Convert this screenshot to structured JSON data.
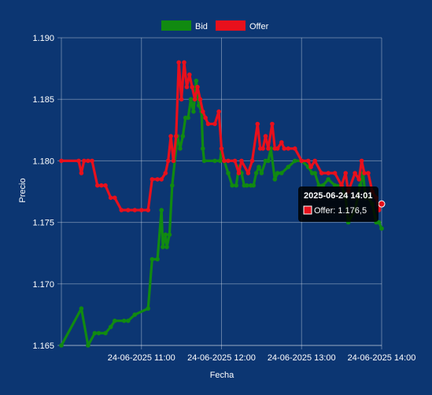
{
  "chart_data": {
    "type": "line",
    "xlabel": "Fecha",
    "ylabel": "Precio",
    "ylim": [
      1.165,
      1.19
    ],
    "yticks": [
      "1.165",
      "1.170",
      "1.175",
      "1.180",
      "1.185",
      "1.190"
    ],
    "xlim": [
      "2025-06-24 10:00",
      "2025-06-24 14:00"
    ],
    "xticks": [
      {
        "t": "2025-06-24 11:00",
        "label": "24-06-2025 11:00"
      },
      {
        "t": "2025-06-24 12:00",
        "label": "24-06-2025 12:00"
      },
      {
        "t": "2025-06-24 13:00",
        "label": "24-06-2025 13:00"
      },
      {
        "t": "2025-06-24 14:00",
        "label": "24-06-2025 14:00"
      }
    ],
    "grid": true,
    "legend_position": "top-center",
    "series": [
      {
        "name": "Bid",
        "color": "#118a11",
        "points": [
          [
            "10:00",
            1.165
          ],
          [
            "10:15",
            1.168
          ],
          [
            "10:20",
            1.165
          ],
          [
            "10:25",
            1.166
          ],
          [
            "10:28",
            1.166
          ],
          [
            "10:33",
            1.166
          ],
          [
            "10:37",
            1.1665
          ],
          [
            "10:40",
            1.167
          ],
          [
            "10:47",
            1.167
          ],
          [
            "10:50",
            1.167
          ],
          [
            "10:55",
            1.1675
          ],
          [
            "11:05",
            1.168
          ],
          [
            "11:08",
            1.172
          ],
          [
            "11:12",
            1.172
          ],
          [
            "11:15",
            1.176
          ],
          [
            "11:16",
            1.173
          ],
          [
            "11:18",
            1.174
          ],
          [
            "11:19",
            1.173
          ],
          [
            "11:21",
            1.174
          ],
          [
            "11:23",
            1.178
          ],
          [
            "11:27",
            1.182
          ],
          [
            "11:29",
            1.181
          ],
          [
            "11:31",
            1.182
          ],
          [
            "11:33",
            1.1835
          ],
          [
            "11:35",
            1.1835
          ],
          [
            "11:37",
            1.185
          ],
          [
            "11:39",
            1.184
          ],
          [
            "11:41",
            1.1865
          ],
          [
            "11:43",
            1.1845
          ],
          [
            "11:45",
            1.184
          ],
          [
            "11:46",
            1.181
          ],
          [
            "11:47",
            1.18
          ],
          [
            "11:55",
            1.18
          ],
          [
            "11:59",
            1.18
          ],
          [
            "12:00",
            1.181
          ],
          [
            "12:02",
            1.18
          ],
          [
            "12:05",
            1.179
          ],
          [
            "12:08",
            1.178
          ],
          [
            "12:11",
            1.178
          ],
          [
            "12:13",
            1.1795
          ],
          [
            "12:15",
            1.179
          ],
          [
            "12:17",
            1.178
          ],
          [
            "12:19",
            1.178
          ],
          [
            "12:22",
            1.178
          ],
          [
            "12:24",
            1.178
          ],
          [
            "12:26",
            1.179
          ],
          [
            "12:28",
            1.1795
          ],
          [
            "12:30",
            1.179
          ],
          [
            "12:33",
            1.18
          ],
          [
            "12:35",
            1.18
          ],
          [
            "12:37",
            1.181
          ],
          [
            "12:40",
            1.1785
          ],
          [
            "12:42",
            1.179
          ],
          [
            "12:45",
            1.179
          ],
          [
            "12:50",
            1.1795
          ],
          [
            "12:55",
            1.18
          ],
          [
            "13:00",
            1.18
          ],
          [
            "13:05",
            1.1795
          ],
          [
            "13:08",
            1.179
          ],
          [
            "13:10",
            1.179
          ],
          [
            "13:13",
            1.178
          ],
          [
            "13:16",
            1.178
          ],
          [
            "13:20",
            1.1785
          ],
          [
            "13:25",
            1.178
          ],
          [
            "13:30",
            1.178
          ],
          [
            "13:33",
            1.177
          ],
          [
            "13:35",
            1.175
          ],
          [
            "13:40",
            1.176
          ],
          [
            "13:44",
            1.178
          ],
          [
            "13:46",
            1.179
          ],
          [
            "13:48",
            1.177
          ],
          [
            "13:50",
            1.177
          ],
          [
            "13:53",
            1.1765
          ],
          [
            "13:56",
            1.175
          ],
          [
            "13:58",
            1.175
          ],
          [
            "14:00",
            1.1745
          ]
        ]
      },
      {
        "name": "Offer",
        "color": "#e8101c",
        "points": [
          [
            "10:00",
            1.18
          ],
          [
            "10:13",
            1.18
          ],
          [
            "10:15",
            1.179
          ],
          [
            "10:17",
            1.18
          ],
          [
            "10:20",
            1.18
          ],
          [
            "10:23",
            1.18
          ],
          [
            "10:27",
            1.178
          ],
          [
            "10:30",
            1.178
          ],
          [
            "10:33",
            1.178
          ],
          [
            "10:37",
            1.177
          ],
          [
            "10:40",
            1.177
          ],
          [
            "10:45",
            1.176
          ],
          [
            "10:50",
            1.176
          ],
          [
            "10:55",
            1.176
          ],
          [
            "11:00",
            1.176
          ],
          [
            "11:05",
            1.176
          ],
          [
            "11:08",
            1.1785
          ],
          [
            "11:12",
            1.1785
          ],
          [
            "11:15",
            1.1785
          ],
          [
            "11:18",
            1.179
          ],
          [
            "11:20",
            1.18
          ],
          [
            "11:22",
            1.182
          ],
          [
            "11:24",
            1.18
          ],
          [
            "11:26",
            1.182
          ],
          [
            "11:28",
            1.188
          ],
          [
            "11:30",
            1.185
          ],
          [
            "11:32",
            1.188
          ],
          [
            "11:34",
            1.186
          ],
          [
            "11:36",
            1.187
          ],
          [
            "11:38",
            1.186
          ],
          [
            "11:40",
            1.185
          ],
          [
            "11:42",
            1.186
          ],
          [
            "11:44",
            1.185
          ],
          [
            "11:46",
            1.184
          ],
          [
            "11:48",
            1.1835
          ],
          [
            "11:50",
            1.183
          ],
          [
            "11:55",
            1.183
          ],
          [
            "11:58",
            1.184
          ],
          [
            "12:00",
            1.181
          ],
          [
            "12:02",
            1.18
          ],
          [
            "12:05",
            1.18
          ],
          [
            "12:10",
            1.18
          ],
          [
            "12:13",
            1.179
          ],
          [
            "12:15",
            1.18
          ],
          [
            "12:20",
            1.179
          ],
          [
            "12:23",
            1.18
          ],
          [
            "12:27",
            1.183
          ],
          [
            "12:29",
            1.181
          ],
          [
            "12:31",
            1.181
          ],
          [
            "12:33",
            1.182
          ],
          [
            "12:35",
            1.181
          ],
          [
            "12:38",
            1.183
          ],
          [
            "12:40",
            1.181
          ],
          [
            "12:42",
            1.181
          ],
          [
            "12:45",
            1.1815
          ],
          [
            "12:47",
            1.181
          ],
          [
            "12:50",
            1.181
          ],
          [
            "12:55",
            1.181
          ],
          [
            "13:00",
            1.18
          ],
          [
            "13:05",
            1.18
          ],
          [
            "13:07",
            1.1795
          ],
          [
            "13:10",
            1.18
          ],
          [
            "13:15",
            1.179
          ],
          [
            "13:20",
            1.179
          ],
          [
            "13:25",
            1.179
          ],
          [
            "13:30",
            1.178
          ],
          [
            "13:33",
            1.179
          ],
          [
            "13:35",
            1.1775
          ],
          [
            "13:40",
            1.179
          ],
          [
            "13:43",
            1.1785
          ],
          [
            "13:45",
            1.18
          ],
          [
            "13:47",
            1.179
          ],
          [
            "13:50",
            1.179
          ],
          [
            "13:53",
            1.1775
          ],
          [
            "13:56",
            1.177
          ],
          [
            "13:58",
            1.176
          ],
          [
            "14:00",
            1.1765
          ]
        ]
      }
    ],
    "tooltip": {
      "title": "2025-06-24 14:01",
      "label": "Offer: 1.176,5",
      "series_color": "#e8101c",
      "anchor_time": "14:00",
      "anchor_value": 1.1765
    }
  }
}
